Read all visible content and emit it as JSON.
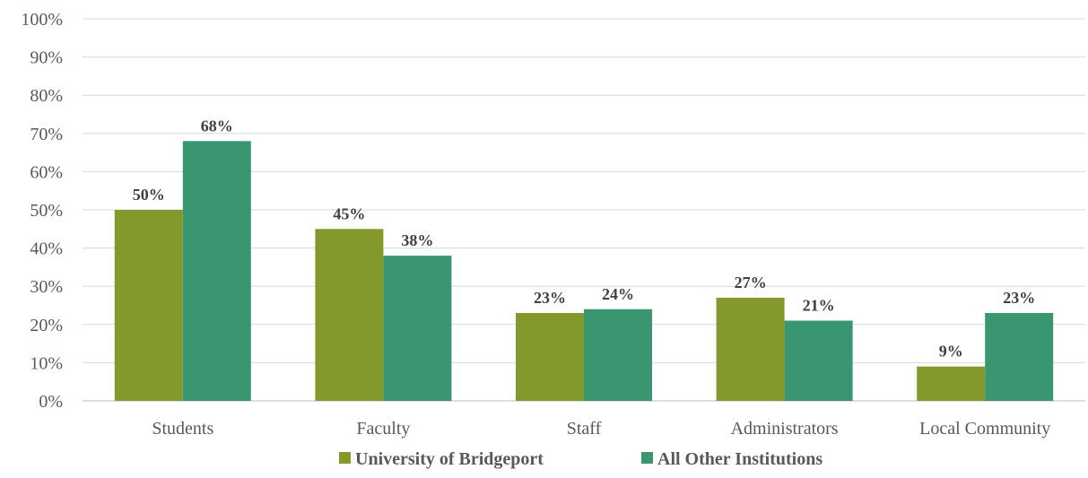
{
  "chart_data": {
    "type": "bar",
    "categories": [
      "Students",
      "Faculty",
      "Staff",
      "Administrators",
      "Local Community"
    ],
    "series": [
      {
        "name": "University of Bridgeport",
        "color": "#84992c",
        "values": [
          50,
          45,
          23,
          27,
          9
        ],
        "labels": [
          "50%",
          "45%",
          "23%",
          "27%",
          "9%"
        ]
      },
      {
        "name": "All Other Institutions",
        "color": "#3a9670",
        "values": [
          68,
          38,
          24,
          21,
          23
        ],
        "labels": [
          "68%",
          "38%",
          "24%",
          "21%",
          "23%"
        ]
      }
    ],
    "yticks": [
      "0%",
      "10%",
      "20%",
      "30%",
      "40%",
      "50%",
      "60%",
      "70%",
      "80%",
      "90%",
      "100%"
    ],
    "ylim": [
      0,
      100
    ],
    "grid": true,
    "legend_position": "bottom",
    "title": "",
    "xlabel": "",
    "ylabel": ""
  }
}
